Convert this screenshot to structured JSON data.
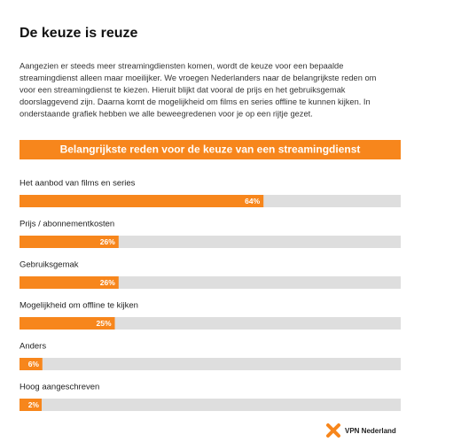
{
  "page": {
    "title": "De keuze is reuze",
    "paragraph": [
      "Aangezien er steeds meer streamingdiensten komen, wordt de keuze voor een bepaalde",
      "streamingdienst alleen maar moeilijker. We vroegen Nederlanders naar de belangrijkste reden om",
      "voor een streamingdienst te kiezen. Hieruit blijkt dat vooral de prijs en het gebruiksgemak",
      "doorslaggevend zijn. Daarna komt de mogelijkheid om films en series offline te kunnen kijken. In",
      "onderstaande grafiek hebben we alle beweegredenen voor je op een rijtje gezet."
    ],
    "brand": "VPN Nederland"
  },
  "chart_data": {
    "type": "bar",
    "orientation": "horizontal",
    "title": "Belangrijkste reden voor de keuze van een streamingdienst",
    "categories": [
      "Het aanbod van films en series",
      "Prijs / abonnementkosten",
      "Gebruiksgemak",
      "Mogelijkheid om offline te kijken",
      "Anders",
      "Hoog aangeschreven"
    ],
    "values": [
      64,
      26,
      26,
      25,
      6,
      2
    ],
    "value_labels": [
      "64%",
      "26%",
      "26%",
      "25%",
      "6%",
      "2%"
    ],
    "xlim": [
      0,
      100
    ],
    "color": "#f7861c",
    "track_color": "#dedede"
  }
}
